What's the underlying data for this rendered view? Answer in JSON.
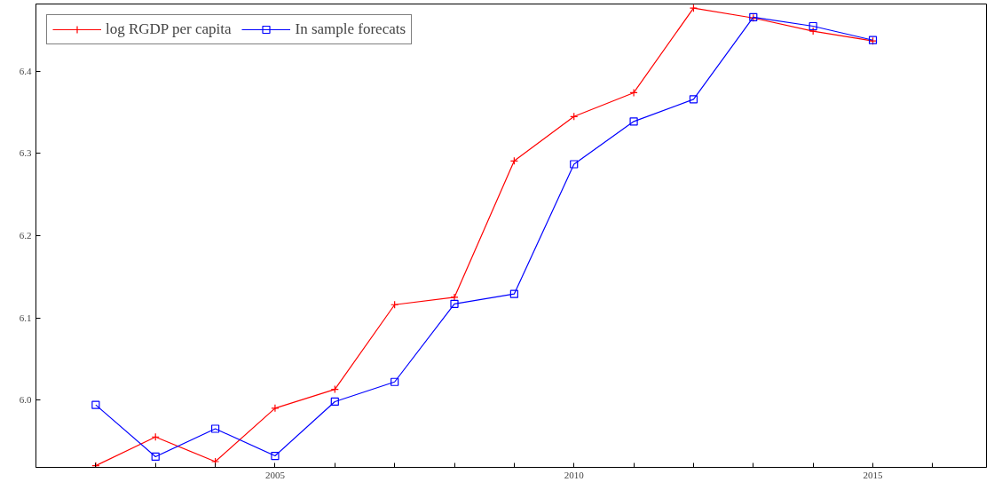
{
  "chart_data": {
    "type": "line",
    "x": [
      2002,
      2003,
      2004,
      2005,
      2006,
      2007,
      2008,
      2009,
      2010,
      2011,
      2012,
      2013,
      2014,
      2015
    ],
    "series": [
      {
        "name": "log RGDP per capita",
        "color": "#ff0000",
        "marker": "cross",
        "values": [
          5.92,
          5.955,
          5.925,
          5.99,
          6.013,
          6.116,
          6.125,
          6.291,
          6.345,
          6.374,
          6.477,
          6.465,
          6.449,
          6.437
        ]
      },
      {
        "name": "In sample forecats",
        "color": "#0000ff",
        "marker": "square",
        "values": [
          5.994,
          5.931,
          5.965,
          5.932,
          5.998,
          6.022,
          6.117,
          6.129,
          6.287,
          6.339,
          6.366,
          6.466,
          6.455,
          6.438
        ]
      }
    ],
    "xlim": [
      2001.0,
      2016.9
    ],
    "ylim": [
      5.918,
      6.482
    ],
    "xticks": [
      {
        "value": 2002,
        "label": null
      },
      {
        "value": 2003,
        "label": null
      },
      {
        "value": 2004,
        "label": null
      },
      2005,
      {
        "value": 2006,
        "label": null
      },
      {
        "value": 2007,
        "label": null
      },
      {
        "value": 2008,
        "label": null
      },
      {
        "value": 2009,
        "label": null
      },
      2010,
      {
        "value": 2011,
        "label": null
      },
      {
        "value": 2012,
        "label": null
      },
      {
        "value": 2013,
        "label": null
      },
      {
        "value": 2014,
        "label": null
      },
      2015,
      {
        "value": 2016,
        "label": null
      }
    ],
    "yticks": [
      {
        "value": 6.0,
        "label": "6.0"
      },
      {
        "value": 6.1,
        "label": "6.1"
      },
      {
        "value": 6.2,
        "label": "6.2"
      },
      {
        "value": 6.3,
        "label": "6.3"
      },
      {
        "value": 6.4,
        "label": "6.4"
      }
    ],
    "grid": false,
    "legend": "top left",
    "line_style": "solid"
  }
}
